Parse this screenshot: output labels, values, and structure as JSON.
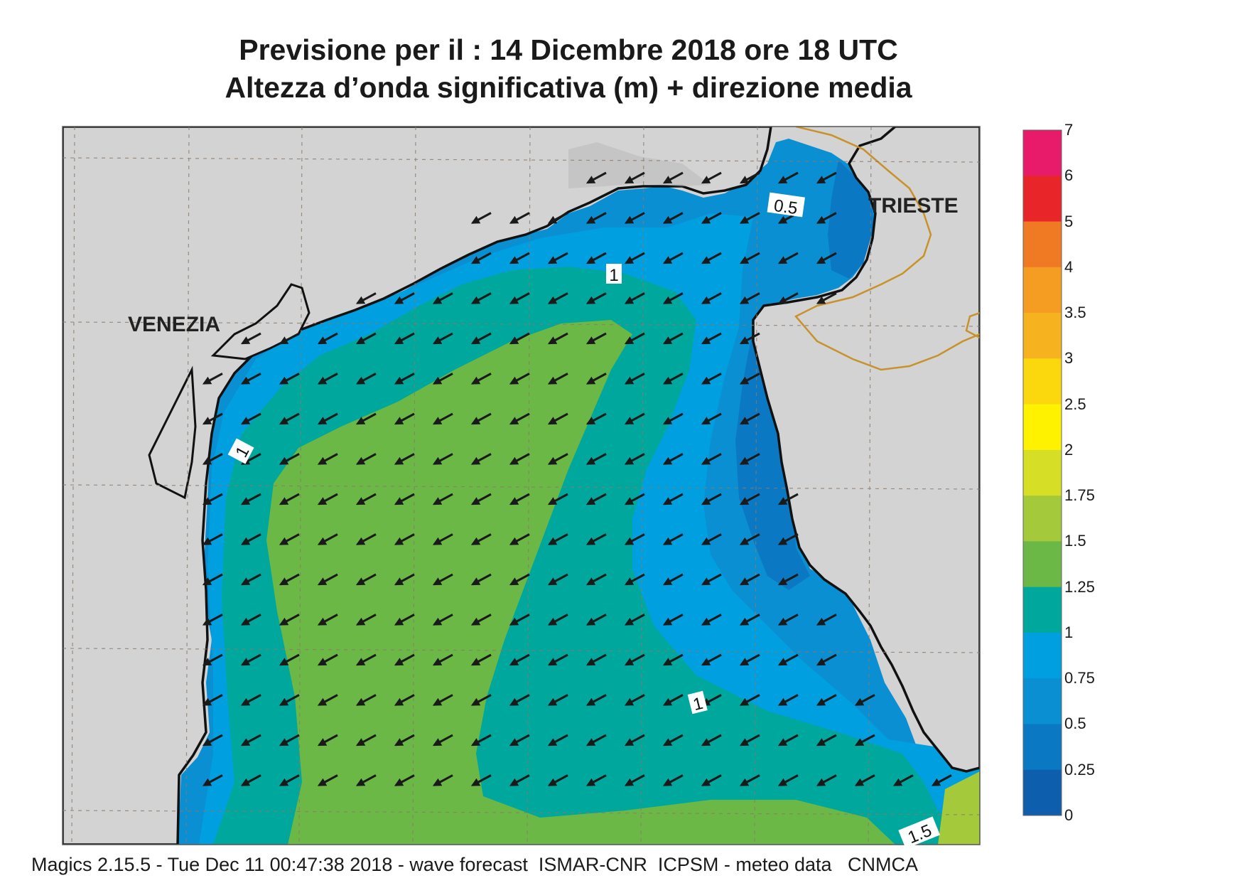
{
  "header": {
    "title_line1": "Previsione per il  :  14 Dicembre  2018   ore 18 UTC",
    "title_line2": "Altezza d’onda significativa (m) + direzione media"
  },
  "map": {
    "city_labels": [
      "VENEZIA",
      "TRIESTE"
    ],
    "contour_labels": [
      "0.5",
      "1",
      "1",
      "1",
      "1.5"
    ],
    "land_color": "#d3d3d3",
    "coast_color": "#111111",
    "border_color": "#c8922a",
    "arrow_direction": "south-west",
    "arrow_color": "#1a1a1a"
  },
  "legend": {
    "unit": "m",
    "levels": [
      "7",
      "6",
      "5",
      "4",
      "3.5",
      "3",
      "2.5",
      "2",
      "1.75",
      "1.5",
      "1.25",
      "1",
      "0.75",
      "0.5",
      "0.25",
      "0"
    ],
    "colors_top_to_bottom": [
      "#e81b6b",
      "#e8262a",
      "#f07a23",
      "#f59d22",
      "#f7b21f",
      "#fbd80e",
      "#fff200",
      "#d6df26",
      "#a4c93b",
      "#6cb847",
      "#00a79d",
      "#009fe0",
      "#0a8fd3",
      "#0b78c4",
      "#0d5fae"
    ]
  },
  "footer": {
    "text": "Magics 2.15.5 - Tue Dec 11 00:47:38 2018 - wave forecast  ISMAR-CNR  ICPSM - meteo data   CNMCA"
  }
}
